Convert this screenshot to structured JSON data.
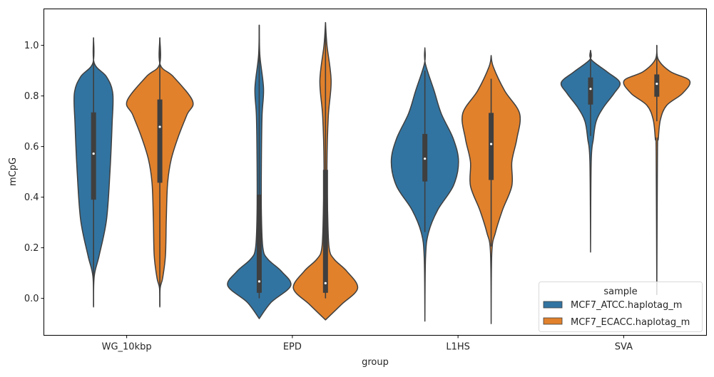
{
  "chart_data": {
    "type": "violin",
    "xlabel": "group",
    "ylabel": "mCpG",
    "categories": [
      "WG_10kbp",
      "EPD",
      "L1HS",
      "SVA"
    ],
    "xlim": [
      -0.5,
      3.5
    ],
    "ylim": [
      -0.146,
      1.144
    ],
    "yticks": [
      0.0,
      0.2,
      0.4,
      0.6,
      0.8,
      1.0
    ],
    "ytick_labels": [
      "0.0",
      "0.2",
      "0.4",
      "0.6",
      "0.8",
      "1.0"
    ],
    "grid": false,
    "legend": {
      "title": "sample",
      "placement": "bottom-right"
    },
    "series": [
      {
        "name": "MCF7_ATCC.haplotag_m",
        "color": "#3274a1",
        "violins": [
          {
            "profile": [
              [
                1.03,
                0
              ],
              [
                0.93,
                0.004
              ],
              [
                0.876,
                0.078
              ],
              [
                0.81,
                0.116
              ],
              [
                0.69,
                0.112
              ],
              [
                0.5,
                0.099
              ],
              [
                0.31,
                0.078
              ],
              [
                0.17,
                0.034
              ],
              [
                0.087,
                0.004
              ],
              [
                -0.034,
                0
              ]
            ],
            "box": {
              "whisker_low": -0.03,
              "q1": 0.39,
              "median": 0.572,
              "q3": 0.735,
              "whisker_high": 1.03
            }
          },
          {
            "profile": [
              [
                1.08,
                0
              ],
              [
                0.96,
                0.004
              ],
              [
                0.83,
                0.026
              ],
              [
                0.72,
                0.017
              ],
              [
                0.53,
                0.013
              ],
              [
                0.34,
                0.013
              ],
              [
                0.2,
                0.022
              ],
              [
                0.155,
                0.052
              ],
              [
                0.107,
                0.134
              ],
              [
                0.05,
                0.19
              ],
              [
                -0.015,
                0.073
              ],
              [
                -0.08,
                0
              ]
            ],
            "box": {
              "whisker_low": 0.0,
              "q1": 0.022,
              "median": 0.067,
              "q3": 0.41,
              "whisker_high": 1.08
            }
          },
          {
            "profile": [
              [
                0.99,
                0
              ],
              [
                0.93,
                0.002
              ],
              [
                0.82,
                0.056
              ],
              [
                0.73,
                0.099
              ],
              [
                0.63,
                0.172
              ],
              [
                0.54,
                0.203
              ],
              [
                0.445,
                0.172
              ],
              [
                0.35,
                0.078
              ],
              [
                0.26,
                0.022
              ],
              [
                0.16,
                0.004
              ],
              [
                -0.09,
                0
              ]
            ],
            "box": {
              "whisker_low": 0.262,
              "q1": 0.462,
              "median": 0.552,
              "q3": 0.65,
              "whisker_high": 0.9
            }
          },
          {
            "profile": [
              [
                0.98,
                0
              ],
              [
                0.944,
                0.004
              ],
              [
                0.896,
                0.099
              ],
              [
                0.853,
                0.177
              ],
              [
                0.81,
                0.142
              ],
              [
                0.755,
                0.078
              ],
              [
                0.7,
                0.034
              ],
              [
                0.63,
                0.017
              ],
              [
                0.54,
                0.004
              ],
              [
                0.183,
                0
              ]
            ],
            "box": {
              "whisker_low": 0.642,
              "q1": 0.766,
              "median": 0.828,
              "q3": 0.873,
              "whisker_high": 0.98
            }
          }
        ]
      },
      {
        "name": "MCF7_ECACC.haplotag_m",
        "color": "#e1812c",
        "violins": [
          {
            "profile": [
              [
                1.03,
                0
              ],
              [
                0.924,
                0.002
              ],
              [
                0.876,
                0.082
              ],
              [
                0.78,
                0.198
              ],
              [
                0.726,
                0.164
              ],
              [
                0.64,
                0.112
              ],
              [
                0.55,
                0.069
              ],
              [
                0.455,
                0.047
              ],
              [
                0.31,
                0.039
              ],
              [
                0.17,
                0.034
              ],
              [
                0.08,
                0.017
              ],
              [
                0.04,
                0.002
              ],
              [
                -0.034,
                0
              ]
            ],
            "box": {
              "whisker_low": -0.03,
              "q1": 0.457,
              "median": 0.678,
              "q3": 0.786,
              "whisker_high": 1.03
            }
          },
          {
            "profile": [
              [
                1.09,
                0
              ],
              [
                1.0,
                0.009
              ],
              [
                0.86,
                0.034
              ],
              [
                0.72,
                0.017
              ],
              [
                0.53,
                0.009
              ],
              [
                0.34,
                0.013
              ],
              [
                0.2,
                0.022
              ],
              [
                0.155,
                0.052
              ],
              [
                0.107,
                0.129
              ],
              [
                0.04,
                0.194
              ],
              [
                -0.025,
                0.095
              ],
              [
                -0.085,
                0
              ]
            ],
            "box": {
              "whisker_low": 0.0,
              "q1": 0.022,
              "median": 0.06,
              "q3": 0.508,
              "whisker_high": 1.09
            }
          },
          {
            "profile": [
              [
                0.96,
                0
              ],
              [
                0.915,
                0.013
              ],
              [
                0.82,
                0.082
              ],
              [
                0.73,
                0.172
              ],
              [
                0.63,
                0.155
              ],
              [
                0.54,
                0.125
              ],
              [
                0.445,
                0.125
              ],
              [
                0.35,
                0.069
              ],
              [
                0.26,
                0.026
              ],
              [
                0.18,
                0.004
              ],
              [
                -0.1,
                0
              ]
            ],
            "box": {
              "whisker_low": 0.205,
              "q1": 0.468,
              "median": 0.61,
              "q3": 0.733,
              "whisker_high": 0.868
            }
          },
          {
            "profile": [
              [
                1.0,
                0
              ],
              [
                0.944,
                0.009
              ],
              [
                0.896,
                0.082
              ],
              [
                0.86,
                0.198
              ],
              [
                0.81,
                0.155
              ],
              [
                0.763,
                0.06
              ],
              [
                0.707,
                0.022
              ],
              [
                0.63,
                0.009
              ],
              [
                0.577,
                0.004
              ],
              [
                0.015,
                0
              ]
            ],
            "box": {
              "whisker_low": 0.7,
              "q1": 0.797,
              "median": 0.848,
              "q3": 0.885,
              "whisker_high": 1.0
            }
          }
        ]
      }
    ]
  }
}
